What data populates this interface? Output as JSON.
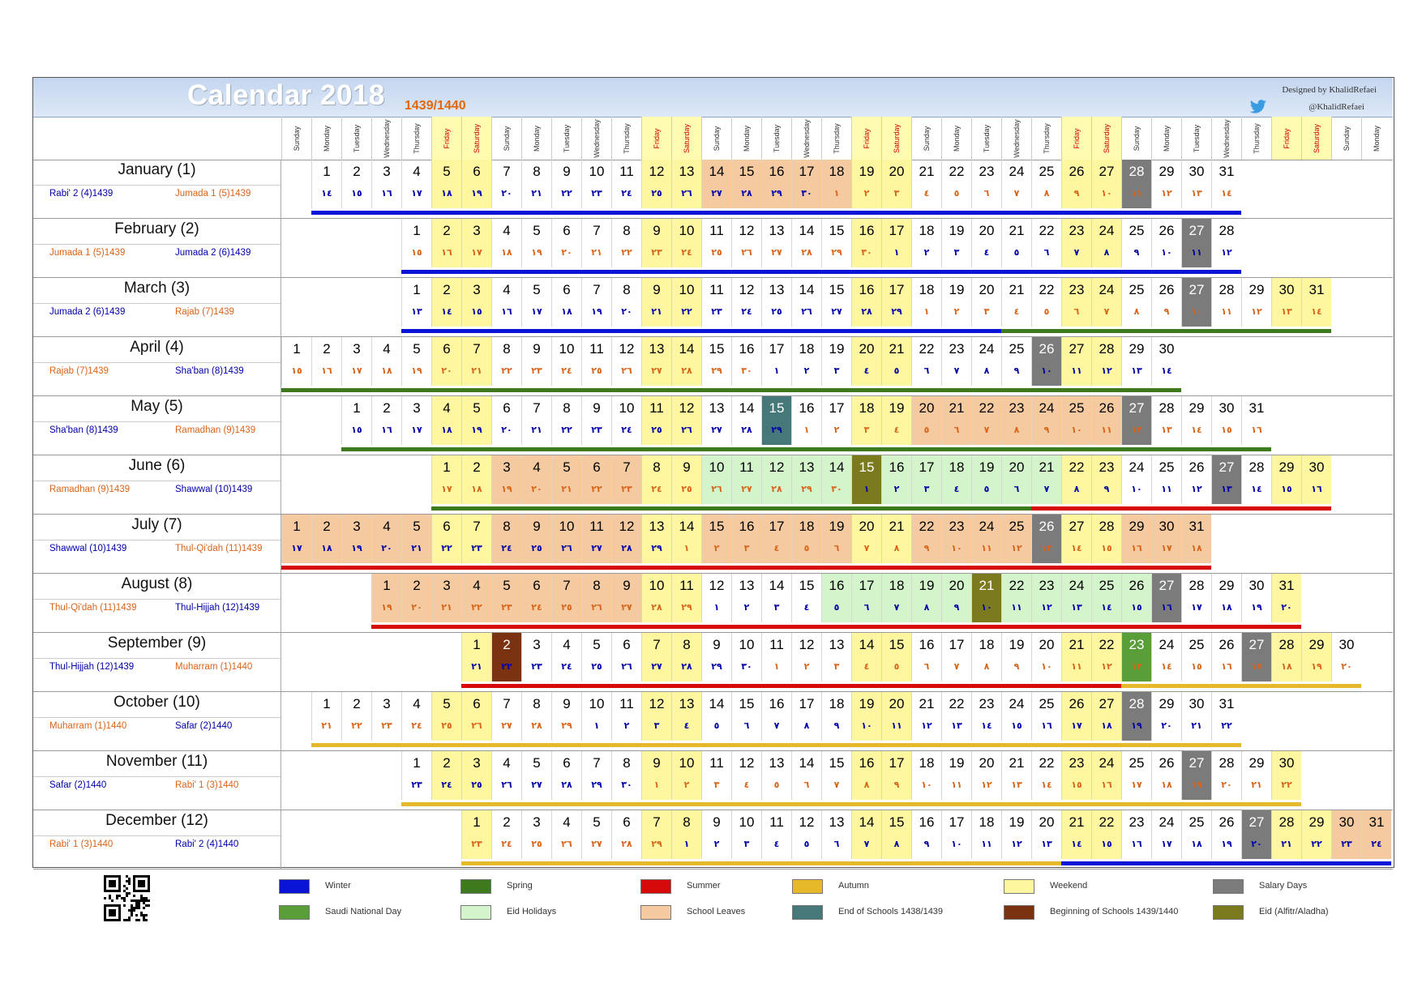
{
  "header": {
    "title": "Calendar 2018",
    "hijri_years": "1439/1440",
    "designer": "Designed by KhalidRefaei",
    "handle": "@KhalidRefaei"
  },
  "day_headers": [
    "Sunday",
    "Monday",
    "Tuesday",
    "Wednesday",
    "Thursday",
    "Friday",
    "Saturday",
    "Sunday",
    "Monday",
    "Tuesday",
    "Wednesday",
    "Thursday",
    "Friday",
    "Saturday",
    "Sunday",
    "Monday",
    "Tuesday",
    "Wednesday",
    "Thursday",
    "Friday",
    "Saturday",
    "Sunday",
    "Monday",
    "Tuesday",
    "Wednesday",
    "Thursday",
    "Friday",
    "Saturday",
    "Sunday",
    "Monday",
    "Tuesday",
    "Wednesday",
    "Thursday",
    "Friday",
    "Saturday",
    "Sunday",
    "Monday"
  ],
  "colors": {
    "winter": "#0a14d6",
    "spring": "#3d7a1e",
    "summer": "#d60a0a",
    "autumn": "#e6b92a",
    "weekend": "#fff7a0",
    "salary": "#7b7b7b",
    "national": "#5a9e3a",
    "eid_holiday": "#d4f5cc",
    "school_leave": "#f5caa0",
    "end_school": "#46787a",
    "begin_school": "#7a3210",
    "eid": "#7b7a1e",
    "hijri_blue": "#0000a8",
    "hijri_orange": "#d8641a"
  },
  "months": [
    {
      "name": "January (1)",
      "hijri_left": "Rabi' 2 (4)1439",
      "hijri_right": "Jumada 1 (5)1439",
      "start": 1,
      "days": 31,
      "hijri": [
        "١٤",
        "١٥",
        "١٦",
        "١٧",
        "١٨",
        "١٩",
        "٢٠",
        "٢١",
        "٢٢",
        "٢٣",
        "٢٤",
        "٢٥",
        "٢٦",
        "٢٧",
        "٢٨",
        "٢٩",
        "٣٠",
        "١",
        "٢",
        "٣",
        "٤",
        "٥",
        "٦",
        "٧",
        "٨",
        "٩",
        "١٠",
        "١١",
        "١٢",
        "١٣",
        "١٤"
      ]
    },
    {
      "name": "February (2)",
      "hijri_left": "Jumada 1 (5)1439",
      "hijri_right": "Jumada 2 (6)1439",
      "start": 4,
      "days": 28,
      "hijri": [
        "١٥",
        "١٦",
        "١٧",
        "١٨",
        "١٩",
        "٢٠",
        "٢١",
        "٢٢",
        "٢٣",
        "٢٤",
        "٢٥",
        "٢٦",
        "٢٧",
        "٢٨",
        "٢٩",
        "٣٠",
        "١",
        "٢",
        "٣",
        "٤",
        "٥",
        "٦",
        "٧",
        "٨",
        "٩",
        "١٠",
        "١١",
        "١٢"
      ]
    },
    {
      "name": "March (3)",
      "hijri_left": "Jumada 2 (6)1439",
      "hijri_right": "Rajab (7)1439",
      "start": 4,
      "days": 31,
      "hijri": [
        "١٣",
        "١٤",
        "١٥",
        "١٦",
        "١٧",
        "١٨",
        "١٩",
        "٢٠",
        "٢١",
        "٢٢",
        "٢٣",
        "٢٤",
        "٢٥",
        "٢٦",
        "٢٧",
        "٢٨",
        "٢٩",
        "١",
        "٢",
        "٣",
        "٤",
        "٥",
        "٦",
        "٧",
        "٨",
        "٩",
        "١٠",
        "١١",
        "١٢",
        "١٣",
        "١٤"
      ]
    },
    {
      "name": "April (4)",
      "hijri_left": "Rajab (7)1439",
      "hijri_right": "Sha'ban (8)1439",
      "start": 0,
      "days": 30,
      "hijri": [
        "١٥",
        "١٦",
        "١٧",
        "١٨",
        "١٩",
        "٢٠",
        "٢١",
        "٢٢",
        "٢٣",
        "٢٤",
        "٢٥",
        "٢٦",
        "٢٧",
        "٢٨",
        "٢٩",
        "٣٠",
        "١",
        "٢",
        "٣",
        "٤",
        "٥",
        "٦",
        "٧",
        "٨",
        "٩",
        "١٠",
        "١١",
        "١٢",
        "١٣",
        "١٤"
      ]
    },
    {
      "name": "May (5)",
      "hijri_left": "Sha'ban (8)1439",
      "hijri_right": "Ramadhan (9)1439",
      "start": 2,
      "days": 31,
      "hijri": [
        "١٥",
        "١٦",
        "١٧",
        "١٨",
        "١٩",
        "٢٠",
        "٢١",
        "٢٢",
        "٢٣",
        "٢٤",
        "٢٥",
        "٢٦",
        "٢٧",
        "٢٨",
        "٢٩",
        "١",
        "٢",
        "٣",
        "٤",
        "٥",
        "٦",
        "٧",
        "٨",
        "٩",
        "١٠",
        "١١",
        "١٢",
        "١٣",
        "١٤",
        "١٥",
        "١٦"
      ]
    },
    {
      "name": "June (6)",
      "hijri_left": "Ramadhan (9)1439",
      "hijri_right": "Shawwal (10)1439",
      "start": 5,
      "days": 30,
      "hijri": [
        "١٧",
        "١٨",
        "١٩",
        "٢٠",
        "٢١",
        "٢٢",
        "٢٣",
        "٢٤",
        "٢٥",
        "٢٦",
        "٢٧",
        "٢٨",
        "٢٩",
        "٣٠",
        "١",
        "٢",
        "٣",
        "٤",
        "٥",
        "٦",
        "٧",
        "٨",
        "٩",
        "١٠",
        "١١",
        "١٢",
        "١٣",
        "١٤",
        "١٥",
        "١٦"
      ]
    },
    {
      "name": "July (7)",
      "hijri_left": "Shawwal (10)1439",
      "hijri_right": "Thul-Qi'dah (11)1439",
      "start": 0,
      "days": 31,
      "hijri": [
        "١٧",
        "١٨",
        "١٩",
        "٢٠",
        "٢١",
        "٢٢",
        "٢٣",
        "٢٤",
        "٢٥",
        "٢٦",
        "٢٧",
        "٢٨",
        "٢٩",
        "١",
        "٢",
        "٣",
        "٤",
        "٥",
        "٦",
        "٧",
        "٨",
        "٩",
        "١٠",
        "١١",
        "١٢",
        "١٣",
        "١٤",
        "١٥",
        "١٦",
        "١٧",
        "١٨"
      ]
    },
    {
      "name": "August (8)",
      "hijri_left": "Thul-Qi'dah (11)1439",
      "hijri_right": "Thul-Hijjah (12)1439",
      "start": 3,
      "days": 31,
      "hijri": [
        "١٩",
        "٢٠",
        "٢١",
        "٢٢",
        "٢٣",
        "٢٤",
        "٢٥",
        "٢٦",
        "٢٧",
        "٢٨",
        "٢٩",
        "١",
        "٢",
        "٣",
        "٤",
        "٥",
        "٦",
        "٧",
        "٨",
        "٩",
        "١٠",
        "١١",
        "١٢",
        "١٣",
        "١٤",
        "١٥",
        "١٦",
        "١٧",
        "١٨",
        "١٩",
        "٢٠"
      ]
    },
    {
      "name": "September (9)",
      "hijri_left": "Thul-Hijjah (12)1439",
      "hijri_right": "Muharram (1)1440",
      "start": 6,
      "days": 30,
      "hijri": [
        "٢١",
        "٢٢",
        "٢٣",
        "٢٤",
        "٢٥",
        "٢٦",
        "٢٧",
        "٢٨",
        "٢٩",
        "٣٠",
        "١",
        "٢",
        "٣",
        "٤",
        "٥",
        "٦",
        "٧",
        "٨",
        "٩",
        "١٠",
        "١١",
        "١٢",
        "١٣",
        "١٤",
        "١٥",
        "١٦",
        "١٧",
        "١٨",
        "١٩",
        "٢٠"
      ]
    },
    {
      "name": "October (10)",
      "hijri_left": "Muharram (1)1440",
      "hijri_right": "Safar (2)1440",
      "start": 1,
      "days": 31,
      "hijri": [
        "٢١",
        "٢٢",
        "٢٣",
        "٢٤",
        "٢٥",
        "٢٦",
        "٢٧",
        "٢٨",
        "٢٩",
        "١",
        "٢",
        "٣",
        "٤",
        "٥",
        "٦",
        "٧",
        "٨",
        "٩",
        "١٠",
        "١١",
        "١٢",
        "١٣",
        "١٤",
        "١٥",
        "١٦",
        "١٧",
        "١٨",
        "١٩",
        "٢٠",
        "٢١",
        "٢٢"
      ]
    },
    {
      "name": "November (11)",
      "hijri_left": "Safar (2)1440",
      "hijri_right": "Rabi' 1 (3)1440",
      "start": 4,
      "days": 30,
      "hijri": [
        "٢٣",
        "٢٤",
        "٢٥",
        "٢٦",
        "٢٧",
        "٢٨",
        "٢٩",
        "٣٠",
        "١",
        "٢",
        "٣",
        "٤",
        "٥",
        "٦",
        "٧",
        "٨",
        "٩",
        "١٠",
        "١١",
        "١٢",
        "١٣",
        "١٤",
        "١٥",
        "١٦",
        "١٧",
        "١٨",
        "١٩",
        "٢٠",
        "٢١",
        "٢٢"
      ]
    },
    {
      "name": "December (12)",
      "hijri_left": "Rabi' 1 (3)1440",
      "hijri_right": "Rabi' 2 (4)1440",
      "start": 6,
      "days": 31,
      "hijri": [
        "٢٣",
        "٢٤",
        "٢٥",
        "٢٦",
        "٢٧",
        "٢٨",
        "٢٩",
        "١",
        "٢",
        "٣",
        "٤",
        "٥",
        "٦",
        "٧",
        "٨",
        "٩",
        "١٠",
        "١١",
        "١٢",
        "١٣",
        "١٤",
        "١٥",
        "١٦",
        "١٧",
        "١٨",
        "١٩",
        "٢٠",
        "٢١",
        "٢٢",
        "٢٣",
        "٢٤"
      ]
    }
  ],
  "legend": [
    {
      "key": "winter",
      "label": "Winter"
    },
    {
      "key": "spring",
      "label": "Spring"
    },
    {
      "key": "summer",
      "label": "Summer"
    },
    {
      "key": "autumn",
      "label": "Autumn"
    },
    {
      "key": "weekend",
      "label": "Weekend"
    },
    {
      "key": "salary",
      "label": "Salary Days"
    },
    {
      "key": "national",
      "label": "Saudi National Day"
    },
    {
      "key": "eid_holiday",
      "label": "Eid Holidays"
    },
    {
      "key": "school_leave",
      "label": "School Leaves"
    },
    {
      "key": "end_school",
      "label": "End of Schools 1438/1439"
    },
    {
      "key": "begin_school",
      "label": "Beginning of Schools 1439/1440"
    },
    {
      "key": "eid",
      "label": "Eid (Alfitr/Aladha)"
    }
  ]
}
